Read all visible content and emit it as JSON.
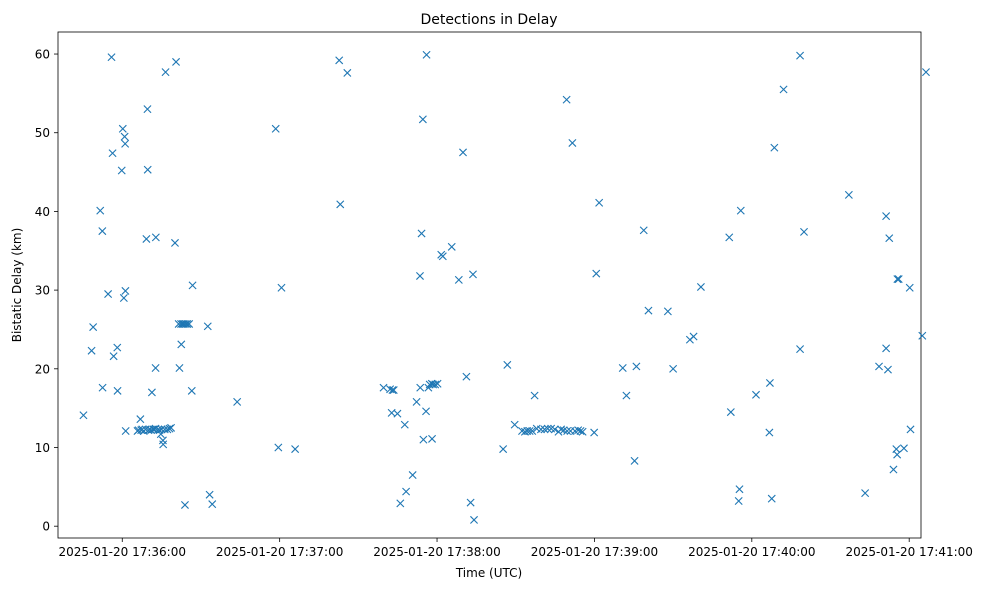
{
  "chart_data": {
    "type": "scatter",
    "title": "Detections in Delay",
    "xlabel": "Time (UTC)",
    "ylabel": "Bistatic Delay (km)",
    "x_unit": "seconds after 2025-01-20 17:36:00",
    "xlim": [
      -24.5,
      304.5
    ],
    "ylim": [
      -1.5,
      62.8
    ],
    "x_ticks": [
      {
        "value": 0,
        "label": "2025-01-20 17:36:00"
      },
      {
        "value": 60,
        "label": "2025-01-20 17:37:00"
      },
      {
        "value": 120,
        "label": "2025-01-20 17:38:00"
      },
      {
        "value": 180,
        "label": "2025-01-20 17:39:00"
      },
      {
        "value": 240,
        "label": "2025-01-20 17:40:00"
      },
      {
        "value": 300,
        "label": "2025-01-20 17:41:00"
      }
    ],
    "y_ticks": [
      {
        "value": 0,
        "label": "0"
      },
      {
        "value": 10,
        "label": "10"
      },
      {
        "value": 20,
        "label": "20"
      },
      {
        "value": 30,
        "label": "30"
      },
      {
        "value": 40,
        "label": "40"
      },
      {
        "value": 50,
        "label": "50"
      },
      {
        "value": 60,
        "label": "60"
      }
    ],
    "grid": false,
    "marker": "x",
    "color": "#1f77b4",
    "points": [
      [
        -14.8,
        14.1
      ],
      [
        -11.7,
        22.3
      ],
      [
        -11.1,
        25.3
      ],
      [
        -8.4,
        40.1
      ],
      [
        -7.6,
        37.5
      ],
      [
        -7.5,
        17.6
      ],
      [
        -5.4,
        29.5
      ],
      [
        -4.1,
        59.6
      ],
      [
        -3.7,
        47.4
      ],
      [
        -3.3,
        21.6
      ],
      [
        -1.9,
        22.7
      ],
      [
        -1.8,
        17.2
      ],
      [
        -0.2,
        45.2
      ],
      [
        0.2,
        50.5
      ],
      [
        0.6,
        29.0
      ],
      [
        0.9,
        49.5
      ],
      [
        1.1,
        48.6
      ],
      [
        1.2,
        29.9
      ],
      [
        1.3,
        12.1
      ],
      [
        5.8,
        12.1
      ],
      [
        6.2,
        12.2
      ],
      [
        6.9,
        13.6
      ],
      [
        7.2,
        12.2
      ],
      [
        7.6,
        12.3
      ],
      [
        8.2,
        12.1
      ],
      [
        8.9,
        12.3
      ],
      [
        9.2,
        36.5
      ],
      [
        9.6,
        53.0
      ],
      [
        9.7,
        45.3
      ],
      [
        10.0,
        12.2
      ],
      [
        10.5,
        12.3
      ],
      [
        11.0,
        12.2
      ],
      [
        11.3,
        17.0
      ],
      [
        11.8,
        12.3
      ],
      [
        12.2,
        12.3
      ],
      [
        12.7,
        20.1
      ],
      [
        12.7,
        12.4
      ],
      [
        12.8,
        36.7
      ],
      [
        13.7,
        12.3
      ],
      [
        14.2,
        12.2
      ],
      [
        14.7,
        11.7
      ],
      [
        15.0,
        12.3
      ],
      [
        15.5,
        10.9
      ],
      [
        15.6,
        10.4
      ],
      [
        16.2,
        12.3
      ],
      [
        16.5,
        57.7
      ],
      [
        17.2,
        12.3
      ],
      [
        18.0,
        12.4
      ],
      [
        18.6,
        12.5
      ],
      [
        20.1,
        36.0
      ],
      [
        20.5,
        59.0
      ],
      [
        21.5,
        25.7
      ],
      [
        21.8,
        20.1
      ],
      [
        22.4,
        25.7
      ],
      [
        22.5,
        23.1
      ],
      [
        23.0,
        25.7
      ],
      [
        23.5,
        25.7
      ],
      [
        23.9,
        2.7
      ],
      [
        24.2,
        25.7
      ],
      [
        24.8,
        25.7
      ],
      [
        25.5,
        25.7
      ],
      [
        26.5,
        17.2
      ],
      [
        26.8,
        30.6
      ],
      [
        32.6,
        25.4
      ],
      [
        33.3,
        4.0
      ],
      [
        34.3,
        2.8
      ],
      [
        43.8,
        15.8
      ],
      [
        58.5,
        50.5
      ],
      [
        59.5,
        10.0
      ],
      [
        60.7,
        30.3
      ],
      [
        65.9,
        9.8
      ],
      [
        82.7,
        59.2
      ],
      [
        83.1,
        40.9
      ],
      [
        85.8,
        57.6
      ],
      [
        99.6,
        17.6
      ],
      [
        102.1,
        17.4
      ],
      [
        102.7,
        14.4
      ],
      [
        103.0,
        17.3
      ],
      [
        103.5,
        17.3
      ],
      [
        104.9,
        14.3
      ],
      [
        106.0,
        2.9
      ],
      [
        107.7,
        12.9
      ],
      [
        108.2,
        4.4
      ],
      [
        110.7,
        6.5
      ],
      [
        112.2,
        15.8
      ],
      [
        113.5,
        31.8
      ],
      [
        113.6,
        17.6
      ],
      [
        114.1,
        37.2
      ],
      [
        114.6,
        51.7
      ],
      [
        114.8,
        11.0
      ],
      [
        115.8,
        14.6
      ],
      [
        116.0,
        59.9
      ],
      [
        116.7,
        17.6
      ],
      [
        117.2,
        18.0
      ],
      [
        118.0,
        18.1
      ],
      [
        118.1,
        11.1
      ],
      [
        118.5,
        18.0
      ],
      [
        119.3,
        18.0
      ],
      [
        120.2,
        18.1
      ],
      [
        121.6,
        34.5
      ],
      [
        122.2,
        34.3
      ],
      [
        125.6,
        35.5
      ],
      [
        128.3,
        31.3
      ],
      [
        129.9,
        47.5
      ],
      [
        131.2,
        19.0
      ],
      [
        132.8,
        3.0
      ],
      [
        133.7,
        32.0
      ],
      [
        134.1,
        0.8
      ],
      [
        145.2,
        9.8
      ],
      [
        146.8,
        20.5
      ],
      [
        149.6,
        12.9
      ],
      [
        152.4,
        12.1
      ],
      [
        153.5,
        12.0
      ],
      [
        154.4,
        12.1
      ],
      [
        155.3,
        12.1
      ],
      [
        156.3,
        12.1
      ],
      [
        157.2,
        16.6
      ],
      [
        158.0,
        12.4
      ],
      [
        159.6,
        12.3
      ],
      [
        161.0,
        12.3
      ],
      [
        162.2,
        12.4
      ],
      [
        163.5,
        12.4
      ],
      [
        164.9,
        12.3
      ],
      [
        166.3,
        12.0
      ],
      [
        167.3,
        12.3
      ],
      [
        168.3,
        12.2
      ],
      [
        169.4,
        54.2
      ],
      [
        169.6,
        12.1
      ],
      [
        170.9,
        12.1
      ],
      [
        171.6,
        48.7
      ],
      [
        172.6,
        12.1
      ],
      [
        173.8,
        12.2
      ],
      [
        174.7,
        12.1
      ],
      [
        175.5,
        12.0
      ],
      [
        179.9,
        11.9
      ],
      [
        180.7,
        32.1
      ],
      [
        181.8,
        41.1
      ],
      [
        190.8,
        20.1
      ],
      [
        192.2,
        16.6
      ],
      [
        195.3,
        8.3
      ],
      [
        196.0,
        20.3
      ],
      [
        198.8,
        37.6
      ],
      [
        200.6,
        27.4
      ],
      [
        208.0,
        27.3
      ],
      [
        210.0,
        20.0
      ],
      [
        216.4,
        23.7
      ],
      [
        217.8,
        24.1
      ],
      [
        220.6,
        30.4
      ],
      [
        231.4,
        36.7
      ],
      [
        232.0,
        14.5
      ],
      [
        235.0,
        3.2
      ],
      [
        235.3,
        4.7
      ],
      [
        235.8,
        40.1
      ],
      [
        241.6,
        16.7
      ],
      [
        246.7,
        11.9
      ],
      [
        246.9,
        18.2
      ],
      [
        247.6,
        3.5
      ],
      [
        248.6,
        48.1
      ],
      [
        252.1,
        55.5
      ],
      [
        258.4,
        59.8
      ],
      [
        258.4,
        22.5
      ],
      [
        259.9,
        37.4
      ],
      [
        277.0,
        42.1
      ],
      [
        283.2,
        4.2
      ],
      [
        288.5,
        20.3
      ],
      [
        291.2,
        39.4
      ],
      [
        291.2,
        22.6
      ],
      [
        291.9,
        19.9
      ],
      [
        292.4,
        36.6
      ],
      [
        294.0,
        7.2
      ],
      [
        295.1,
        9.8
      ],
      [
        295.4,
        9.1
      ],
      [
        295.5,
        31.4
      ],
      [
        296.0,
        31.4
      ],
      [
        298.0,
        9.9
      ],
      [
        300.2,
        30.3
      ],
      [
        300.5,
        12.3
      ],
      [
        305.0,
        24.2
      ],
      [
        306.4,
        57.7
      ]
    ]
  }
}
